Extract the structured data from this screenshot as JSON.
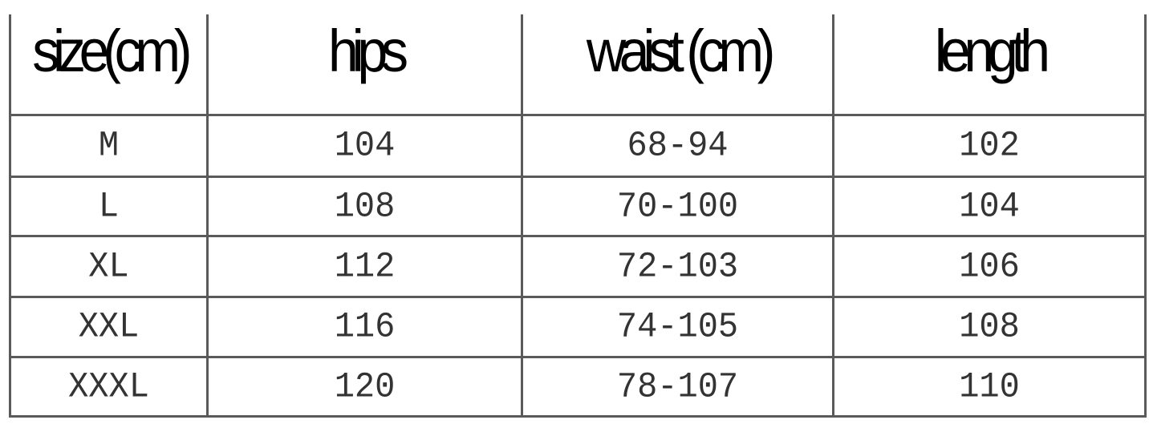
{
  "table": {
    "headers": [
      "size(cm)",
      "hips",
      "waist (cm)",
      "length"
    ],
    "rows": [
      [
        "M",
        "104",
        "68-94",
        "102"
      ],
      [
        "L",
        "108",
        "70-100",
        "104"
      ],
      [
        "XL",
        "112",
        "72-103",
        "106"
      ],
      [
        "XXL",
        "116",
        "74-105",
        "108"
      ],
      [
        "XXXL",
        "120",
        "78-107",
        "110"
      ]
    ]
  }
}
